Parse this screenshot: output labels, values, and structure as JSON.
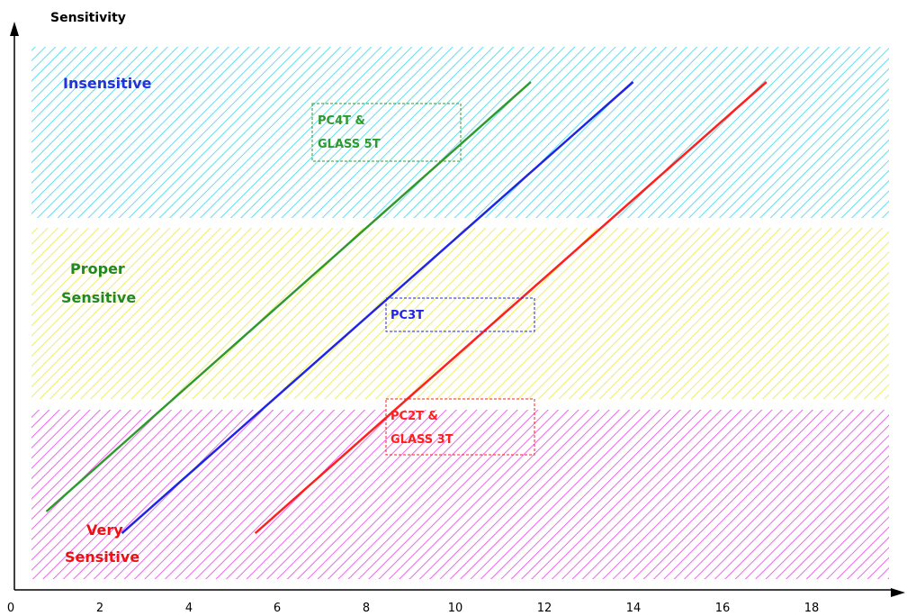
{
  "chart_data": {
    "type": "line",
    "ylabel": "Sensitivity",
    "xlabel": "",
    "xlim": [
      0,
      20
    ],
    "x_ticks": [
      "0",
      "2",
      "4",
      "6",
      "8",
      "10",
      "12",
      "14",
      "16",
      "18"
    ],
    "grid": false,
    "zones": [
      {
        "label_lines": [
          "Insensitive"
        ],
        "color": "#5fdff0",
        "label_color": "#2233dd"
      },
      {
        "label_lines": [
          "Proper",
          "Sensitive"
        ],
        "color": "#eeee66",
        "label_color": "#228822"
      },
      {
        "label_lines": [
          "Very",
          "Sensitive"
        ],
        "color": "#ee66ee",
        "label_color": "#ee1111"
      }
    ],
    "series": [
      {
        "name_lines": [
          "PC4T &",
          "GLASS 5T"
        ],
        "color": "#2e9a2e",
        "x": [
          0.8,
          11.7
        ],
        "y": [
          1.45,
          9.4
        ]
      },
      {
        "name_lines": [
          "PC3T"
        ],
        "color": "#1f24e6",
        "x": [
          2.5,
          14.0
        ],
        "y": [
          1.05,
          9.4
        ]
      },
      {
        "name_lines": [
          "PC2T &",
          "GLASS 3T"
        ],
        "color": "#ff1f1f",
        "x": [
          5.5,
          17.0
        ],
        "y": [
          1.05,
          9.4
        ]
      }
    ]
  }
}
